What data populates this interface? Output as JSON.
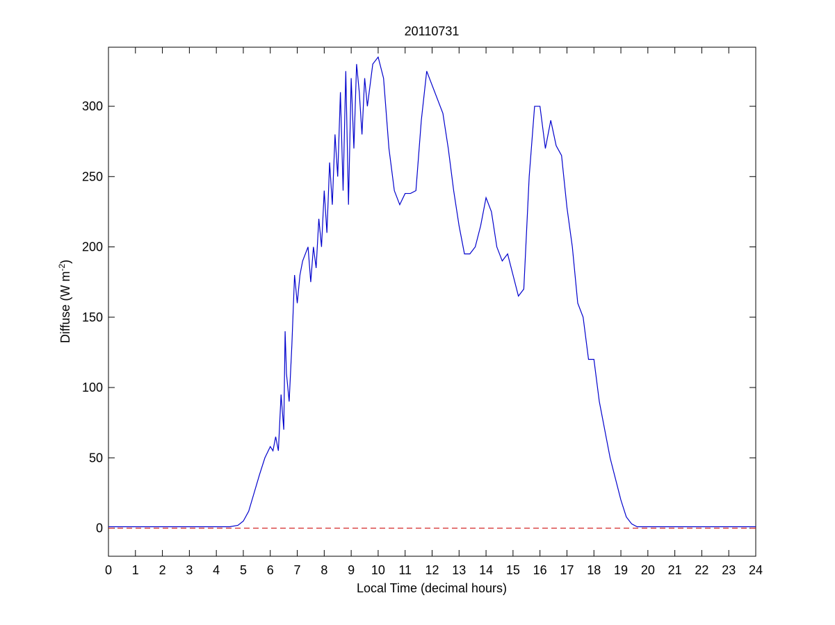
{
  "chart_data": {
    "type": "line",
    "title": "20110731",
    "xlabel": "Local Time (decimal hours)",
    "ylabel": {
      "text": "Diffuse (W m",
      "sup": "-2",
      "tail": ")"
    },
    "x": [
      0,
      1,
      2,
      3,
      4,
      4.5,
      4.8,
      5.0,
      5.2,
      5.4,
      5.6,
      5.8,
      6.0,
      6.1,
      6.2,
      6.3,
      6.4,
      6.5,
      6.55,
      6.6,
      6.7,
      6.8,
      6.9,
      7.0,
      7.1,
      7.2,
      7.4,
      7.5,
      7.6,
      7.7,
      7.8,
      7.9,
      8.0,
      8.1,
      8.2,
      8.3,
      8.4,
      8.5,
      8.6,
      8.7,
      8.8,
      8.9,
      9.0,
      9.1,
      9.2,
      9.3,
      9.4,
      9.5,
      9.6,
      9.8,
      10.0,
      10.2,
      10.4,
      10.6,
      10.8,
      11.0,
      11.2,
      11.4,
      11.6,
      11.8,
      12.0,
      12.2,
      12.4,
      12.6,
      12.8,
      13.0,
      13.2,
      13.4,
      13.6,
      13.8,
      14.0,
      14.2,
      14.4,
      14.6,
      14.8,
      15.0,
      15.2,
      15.4,
      15.6,
      15.8,
      16.0,
      16.2,
      16.4,
      16.6,
      16.8,
      17.0,
      17.2,
      17.4,
      17.6,
      17.8,
      18.0,
      18.2,
      18.4,
      18.6,
      18.8,
      19.0,
      19.2,
      19.4,
      19.6,
      20,
      21,
      22,
      23,
      24
    ],
    "series": [
      {
        "name": "Diffuse",
        "color": "#0000cc",
        "values": [
          1,
          1,
          1,
          1,
          1,
          1,
          2,
          5,
          12,
          25,
          38,
          50,
          58,
          55,
          65,
          55,
          95,
          70,
          140,
          110,
          90,
          130,
          180,
          160,
          180,
          190,
          200,
          175,
          200,
          185,
          220,
          200,
          240,
          210,
          260,
          230,
          280,
          250,
          310,
          240,
          325,
          230,
          320,
          270,
          330,
          310,
          280,
          320,
          300,
          330,
          335,
          320,
          270,
          240,
          230,
          238,
          238,
          240,
          290,
          325,
          315,
          305,
          295,
          270,
          240,
          215,
          195,
          195,
          200,
          215,
          235,
          225,
          200,
          190,
          195,
          180,
          165,
          170,
          250,
          300,
          300,
          270,
          290,
          272,
          265,
          228,
          200,
          160,
          150,
          120,
          120,
          90,
          70,
          50,
          35,
          20,
          8,
          3,
          1,
          1,
          1,
          1,
          1,
          1
        ]
      }
    ],
    "reference_line": {
      "value": 0,
      "color": "#cc0000",
      "dashed": true
    },
    "xlim": [
      0,
      24
    ],
    "xticks": [
      0,
      1,
      2,
      3,
      4,
      5,
      6,
      7,
      8,
      9,
      10,
      11,
      12,
      13,
      14,
      15,
      16,
      17,
      18,
      19,
      20,
      21,
      22,
      23,
      24
    ],
    "ylim": [
      -20,
      342
    ],
    "yticks": [
      0,
      50,
      100,
      150,
      200,
      250,
      300
    ],
    "grid": false
  }
}
